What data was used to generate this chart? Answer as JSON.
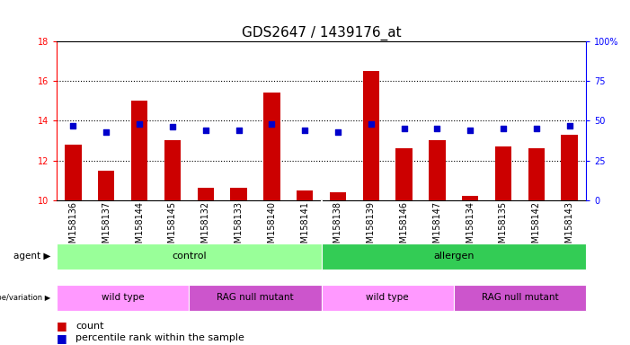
{
  "title": "GDS2647 / 1439176_at",
  "samples": [
    "GSM158136",
    "GSM158137",
    "GSM158144",
    "GSM158145",
    "GSM158132",
    "GSM158133",
    "GSM158140",
    "GSM158141",
    "GSM158138",
    "GSM158139",
    "GSM158146",
    "GSM158147",
    "GSM158134",
    "GSM158135",
    "GSM158142",
    "GSM158143"
  ],
  "counts": [
    12.8,
    11.5,
    15.0,
    13.0,
    10.6,
    10.6,
    15.4,
    10.5,
    10.4,
    16.5,
    12.6,
    13.0,
    10.2,
    12.7,
    12.6,
    13.3
  ],
  "percentiles": [
    47,
    43,
    48,
    46,
    44,
    44,
    48,
    44,
    43,
    48,
    45,
    45,
    44,
    45,
    45,
    47
  ],
  "ylim_left": [
    10,
    18
  ],
  "ylim_right": [
    0,
    100
  ],
  "yticks_left": [
    10,
    12,
    14,
    16,
    18
  ],
  "yticks_right": [
    0,
    25,
    50,
    75,
    100
  ],
  "bar_color": "#cc0000",
  "dot_color": "#0000cc",
  "bar_bottom": 10,
  "agent_groups": [
    {
      "label": "control",
      "start": 0,
      "end": 8,
      "color": "#99ff99"
    },
    {
      "label": "allergen",
      "start": 8,
      "end": 16,
      "color": "#33cc55"
    }
  ],
  "genotype_groups": [
    {
      "label": "wild type",
      "start": 0,
      "end": 4,
      "color": "#ff99ff"
    },
    {
      "label": "RAG null mutant",
      "start": 4,
      "end": 8,
      "color": "#cc55cc"
    },
    {
      "label": "wild type",
      "start": 8,
      "end": 12,
      "color": "#ff99ff"
    },
    {
      "label": "RAG null mutant",
      "start": 12,
      "end": 16,
      "color": "#cc55cc"
    }
  ],
  "legend_count_color": "#cc0000",
  "legend_dot_color": "#0000cc",
  "background_color": "#ffffff",
  "title_fontsize": 11,
  "tick_fontsize": 7,
  "annotation_fontsize": 8,
  "legend_fontsize": 8
}
